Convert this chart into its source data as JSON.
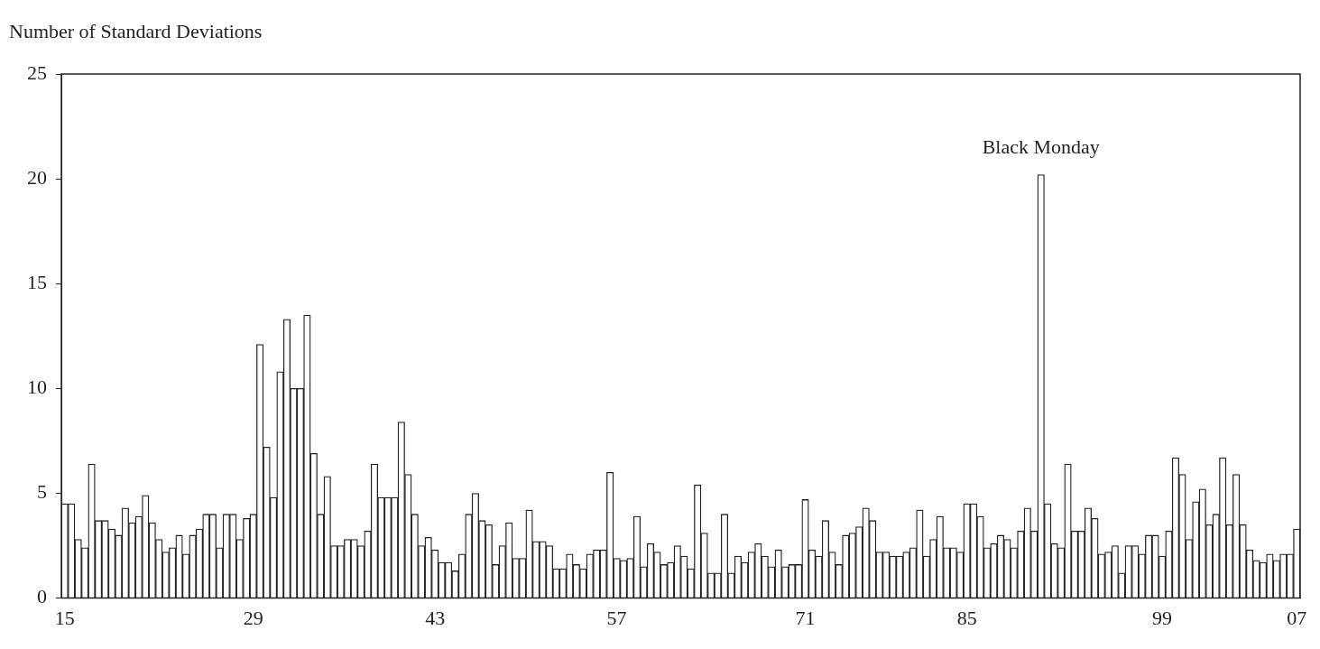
{
  "chart_data": {
    "type": "bar",
    "ylabel": "Number of Standard Deviations",
    "categories": [
      "15",
      null,
      null,
      null,
      null,
      null,
      null,
      null,
      null,
      null,
      null,
      null,
      null,
      null,
      null,
      null,
      null,
      null,
      null,
      null,
      null,
      null,
      null,
      null,
      null,
      null,
      null,
      null,
      "29",
      null,
      null,
      null,
      null,
      null,
      null,
      null,
      null,
      null,
      null,
      null,
      null,
      null,
      null,
      null,
      null,
      null,
      null,
      null,
      null,
      null,
      null,
      null,
      null,
      null,
      null,
      "43",
      null,
      null,
      null,
      null,
      null,
      null,
      null,
      null,
      null,
      null,
      null,
      null,
      null,
      null,
      null,
      null,
      null,
      null,
      null,
      null,
      null,
      null,
      null,
      null,
      null,
      null,
      "57",
      null,
      null,
      null,
      null,
      null,
      null,
      null,
      null,
      null,
      null,
      null,
      null,
      null,
      null,
      null,
      null,
      null,
      null,
      null,
      null,
      null,
      null,
      null,
      null,
      null,
      null,
      null,
      "71",
      null,
      null,
      null,
      null,
      null,
      null,
      null,
      null,
      null,
      null,
      null,
      null,
      null,
      null,
      null,
      null,
      null,
      null,
      null,
      null,
      null,
      null,
      null,
      "85",
      null,
      null,
      null,
      null,
      null,
      null,
      null,
      null,
      null,
      null,
      null,
      null,
      null,
      null,
      null,
      null,
      null,
      null,
      null,
      null,
      null,
      null,
      null,
      null,
      null,
      null,
      null,
      null,
      "99",
      null,
      null,
      null,
      null,
      null,
      null,
      null,
      null,
      null,
      null,
      null,
      null,
      null,
      null,
      null,
      null,
      null,
      null,
      null,
      "07"
    ],
    "values": [
      4.5,
      4.5,
      2.8,
      2.4,
      6.4,
      3.7,
      3.7,
      3.3,
      3.0,
      4.3,
      3.6,
      3.9,
      4.9,
      3.6,
      2.8,
      2.2,
      2.4,
      3.0,
      2.1,
      3.0,
      3.3,
      4.0,
      4.0,
      2.4,
      4.0,
      4.0,
      2.8,
      3.8,
      4.0,
      12.1,
      7.2,
      4.8,
      10.8,
      13.3,
      10.0,
      10.0,
      13.5,
      6.9,
      4.0,
      5.8,
      2.5,
      2.5,
      2.8,
      2.8,
      2.5,
      3.2,
      6.4,
      4.8,
      4.8,
      4.8,
      8.4,
      5.9,
      4.0,
      2.5,
      2.9,
      2.3,
      1.7,
      1.7,
      1.3,
      2.1,
      4.0,
      5.0,
      3.7,
      3.5,
      1.6,
      2.5,
      3.6,
      1.9,
      1.9,
      4.2,
      2.7,
      2.7,
      2.5,
      1.4,
      1.4,
      2.1,
      1.6,
      1.4,
      2.1,
      2.3,
      2.3,
      6.0,
      1.9,
      1.8,
      1.9,
      3.9,
      1.5,
      2.6,
      2.2,
      1.6,
      1.7,
      2.5,
      2.0,
      1.4,
      5.4,
      3.1,
      1.2,
      1.2,
      4.0,
      1.2,
      2.0,
      1.7,
      2.2,
      2.6,
      2.0,
      1.5,
      2.3,
      1.5,
      1.6,
      1.6,
      4.7,
      2.3,
      2.0,
      3.7,
      2.2,
      1.6,
      3.0,
      3.1,
      3.4,
      4.3,
      3.7,
      2.2,
      2.2,
      2.0,
      2.0,
      2.2,
      2.4,
      4.2,
      2.0,
      2.8,
      3.9,
      2.4,
      2.4,
      2.2,
      4.5,
      4.5,
      3.9,
      2.4,
      2.6,
      3.0,
      2.8,
      2.4,
      3.2,
      4.3,
      3.2,
      20.2,
      4.5,
      2.6,
      2.4,
      6.4,
      3.2,
      3.2,
      4.3,
      3.8,
      2.1,
      2.2,
      2.5,
      1.2,
      2.5,
      2.5,
      2.1,
      3.0,
      3.0,
      2.0,
      3.2,
      6.7,
      5.9,
      2.8,
      4.6,
      5.2,
      3.5,
      4.0,
      6.7,
      3.5,
      5.9,
      3.5,
      2.3,
      1.8,
      1.7,
      2.1,
      1.8,
      2.1,
      2.1,
      3.3
    ],
    "color": "#ffffff",
    "ylim": [
      0,
      25
    ],
    "yticks": [
      0,
      5,
      10,
      15,
      20,
      25
    ],
    "annotations": [
      {
        "text": "Black Monday",
        "y": 20.2
      }
    ],
    "grid": false,
    "legend": false
  }
}
